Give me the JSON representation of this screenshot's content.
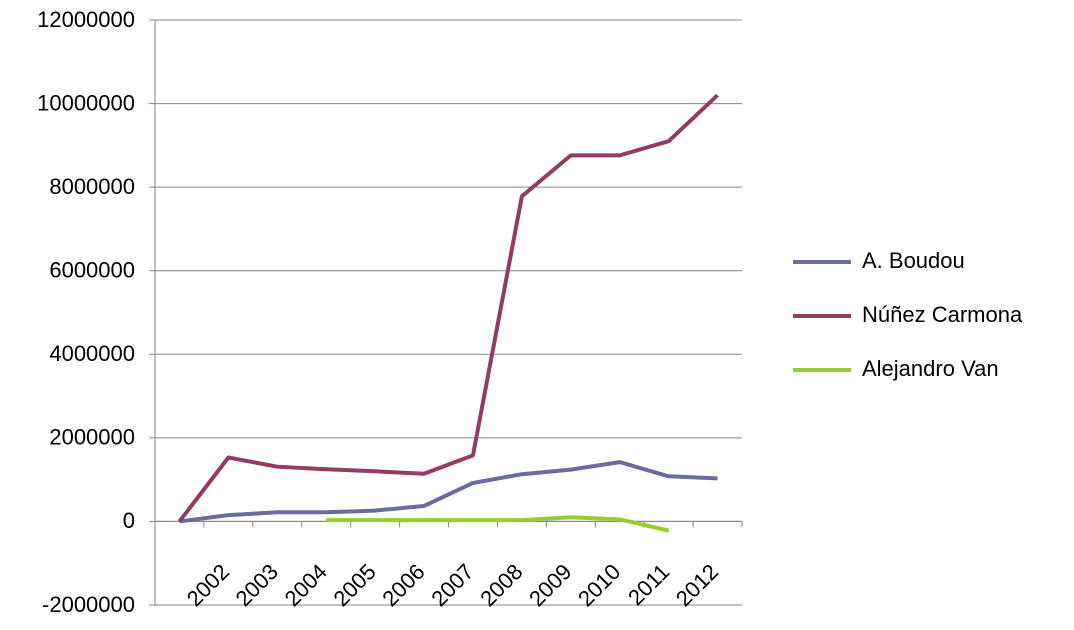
{
  "chart_data": {
    "type": "line",
    "categories": [
      null,
      "2002",
      "2003",
      "2004",
      "2005",
      "2006",
      "2007",
      "2008",
      "2009",
      "2010",
      "2011",
      "2012"
    ],
    "series": [
      {
        "name": "A. Boudou",
        "color": "#6b6ba0",
        "values": [
          0,
          150000,
          220000,
          220000,
          260000,
          370000,
          920000,
          1130000,
          1240000,
          1420000,
          1080000,
          1030000
        ]
      },
      {
        "name": "Núñez Carmona",
        "color": "#943b64",
        "values": [
          0,
          1530000,
          1310000,
          1250000,
          1200000,
          1140000,
          1580000,
          7780000,
          8760000,
          8760000,
          9100000,
          10200000
        ]
      },
      {
        "name": "Alejandro Van",
        "color": "#99cc33",
        "values": [
          null,
          null,
          null,
          30000,
          30000,
          30000,
          30000,
          30000,
          100000,
          50000,
          -220000,
          null
        ]
      }
    ],
    "ylim": [
      -2000000,
      12000000
    ],
    "yticks": [
      -2000000,
      0,
      2000000,
      4000000,
      6000000,
      8000000,
      10000000,
      12000000
    ],
    "grid": true,
    "legend": "right"
  }
}
